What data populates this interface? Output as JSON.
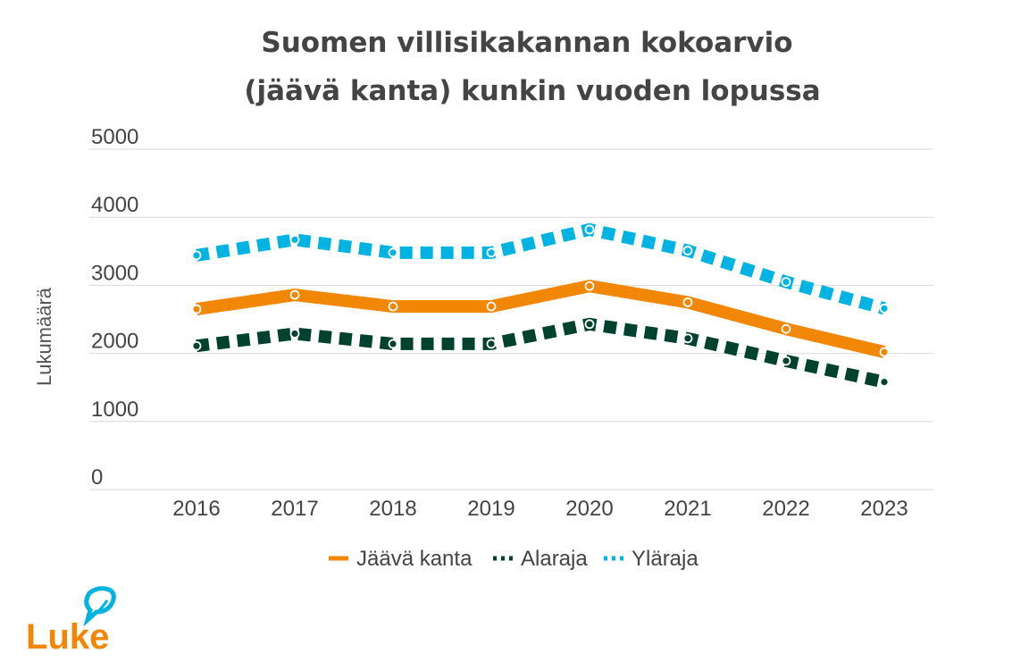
{
  "chart_data": {
    "type": "line",
    "title": [
      "Suomen villisikakannan kokoarvio",
      "(jäävä kanta) kunkin vuoden lopussa"
    ],
    "xlabel": "",
    "ylabel": "Lukumäärä",
    "ylim": [
      0,
      5000
    ],
    "yticks": [
      "0",
      "1000",
      "2000",
      "3000",
      "4000",
      "5000"
    ],
    "categories": [
      "2016",
      "2017",
      "2018",
      "2019",
      "2020",
      "2021",
      "2022",
      "2023"
    ],
    "grid": true,
    "legend_position": "bottom",
    "series": [
      {
        "name": "Jäävä kanta",
        "color": "#f28705",
        "style": "solid",
        "values": [
          2650,
          2860,
          2690,
          2690,
          2990,
          2750,
          2360,
          2020
        ]
      },
      {
        "name": "Alaraja",
        "color": "#00422e",
        "style": "dotted",
        "values": [
          2110,
          2290,
          2140,
          2140,
          2430,
          2220,
          1890,
          1580
        ]
      },
      {
        "name": "Yläraja",
        "color": "#00b3e3",
        "style": "dotted",
        "values": [
          3440,
          3670,
          3480,
          3480,
          3820,
          3510,
          3050,
          2660
        ]
      }
    ]
  },
  "logo": {
    "text": "Luke",
    "color": "#f28705",
    "leaf_color": "#00b3e3"
  }
}
